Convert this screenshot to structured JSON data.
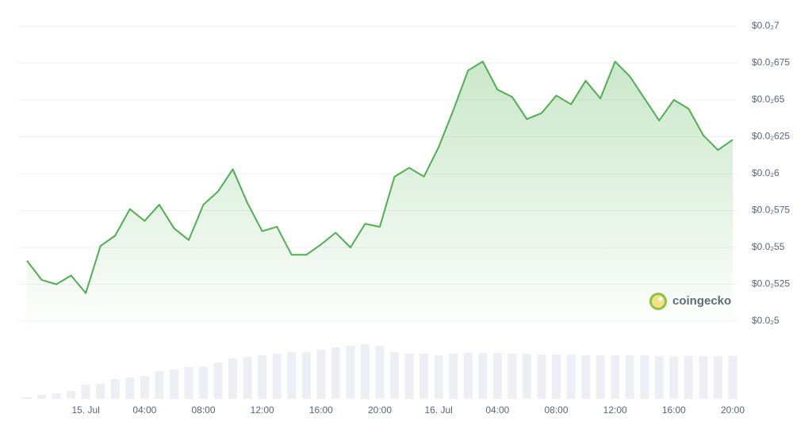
{
  "chart_data": [
    {
      "type": "area-line",
      "color": "#4fb04f",
      "watermark": "coingecko",
      "x": [
        -4,
        -3,
        -2,
        -1,
        0,
        1,
        2,
        3,
        4,
        5,
        6,
        7,
        8,
        9,
        10,
        11,
        12,
        13,
        14,
        15,
        16,
        17,
        18,
        19,
        20,
        21,
        22,
        23,
        24,
        25,
        26,
        27,
        28,
        29,
        30,
        31,
        32,
        33,
        34,
        35,
        36,
        37,
        38,
        39,
        40,
        41,
        42,
        43,
        44
      ],
      "values": [
        0.00541,
        0.00528,
        0.00525,
        0.00531,
        0.00519,
        0.00551,
        0.00558,
        0.00576,
        0.00568,
        0.00579,
        0.00563,
        0.00555,
        0.00579,
        0.00588,
        0.00603,
        0.0058,
        0.00561,
        0.00564,
        0.00545,
        0.00545,
        0.00552,
        0.0056,
        0.0055,
        0.00566,
        0.00564,
        0.00598,
        0.00604,
        0.00598,
        0.00618,
        0.00643,
        0.0067,
        0.00676,
        0.00657,
        0.00652,
        0.00637,
        0.00641,
        0.00653,
        0.00647,
        0.00663,
        0.00651,
        0.00676,
        0.00666,
        0.00651,
        0.00636,
        0.0065,
        0.00644,
        0.00626,
        0.00616,
        0.00623
      ],
      "xlim": [
        -4,
        44
      ],
      "xticks": [
        {
          "value": 0,
          "label": "15. Jul"
        },
        {
          "value": 4,
          "label": "04:00"
        },
        {
          "value": 8,
          "label": "08:00"
        },
        {
          "value": 12,
          "label": "12:00"
        },
        {
          "value": 16,
          "label": "16:00"
        },
        {
          "value": 20,
          "label": "20:00"
        },
        {
          "value": 24,
          "label": "16. Jul"
        },
        {
          "value": 28,
          "label": "04:00"
        },
        {
          "value": 32,
          "label": "08:00"
        },
        {
          "value": 36,
          "label": "12:00"
        },
        {
          "value": 40,
          "label": "16:00"
        },
        {
          "value": 44,
          "label": "20:00"
        }
      ],
      "ylim": [
        0.005,
        0.007
      ],
      "yticks": [
        {
          "value": 0.005,
          "label": "$0.0₂5"
        },
        {
          "value": 0.00525,
          "label": "$0.0₂525"
        },
        {
          "value": 0.0055,
          "label": "$0.0₂55"
        },
        {
          "value": 0.00575,
          "label": "$0.0₂575"
        },
        {
          "value": 0.006,
          "label": "$0.0₂6"
        },
        {
          "value": 0.00625,
          "label": "$0.0₂625"
        },
        {
          "value": 0.0065,
          "label": "$0.0₂65"
        },
        {
          "value": 0.00675,
          "label": "$0.0₂675"
        },
        {
          "value": 0.007,
          "label": "$0.0₂7"
        }
      ],
      "grid": true
    },
    {
      "type": "bar",
      "color": "#eeeff4",
      "x": [
        -4,
        -3,
        -2,
        -1,
        0,
        1,
        2,
        3,
        4,
        5,
        6,
        7,
        8,
        9,
        10,
        11,
        12,
        13,
        14,
        15,
        16,
        17,
        18,
        19,
        20,
        21,
        22,
        23,
        24,
        25,
        26,
        27,
        28,
        29,
        30,
        31,
        32,
        33,
        34,
        35,
        36,
        37,
        38,
        39,
        40,
        41,
        42,
        43,
        44
      ],
      "values": [
        2,
        5,
        7,
        10,
        18,
        19,
        25,
        27,
        29,
        35,
        37,
        40,
        41,
        46,
        51,
        53,
        55,
        57,
        59,
        59,
        62,
        65,
        67,
        69,
        67,
        59,
        57,
        57,
        55,
        57,
        58,
        58,
        58,
        57,
        57,
        56,
        56,
        56,
        55,
        55,
        55,
        55,
        55,
        54,
        54,
        54,
        54,
        54,
        54
      ],
      "ylim": [
        0,
        70
      ]
    }
  ]
}
